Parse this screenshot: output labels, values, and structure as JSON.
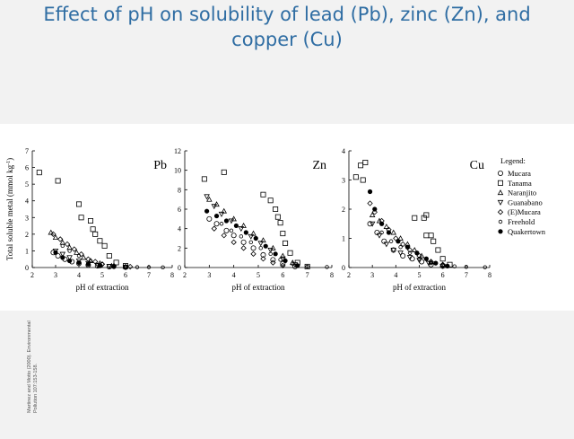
{
  "slide": {
    "title_line1": "Effect of pH on solubility of lead (Pb), zinc (Zn), and",
    "title_line2": "copper (Cu)",
    "citation": "Martinez and Motto (2000). Environmental Pollution 107:153-158."
  },
  "legend": {
    "title": "Legend:",
    "entries": [
      {
        "name": "Mucara",
        "marker": "circle-open"
      },
      {
        "name": "Tanama",
        "marker": "square-open"
      },
      {
        "name": "Naranjito",
        "marker": "triangle-up-open"
      },
      {
        "name": "Guanabano",
        "marker": "triangle-down-open"
      },
      {
        "name": "(E)Mucara",
        "marker": "diamond-open"
      },
      {
        "name": "Freehold",
        "marker": "small-circle-open"
      },
      {
        "name": "Quakertown",
        "marker": "circle-filled"
      }
    ]
  },
  "ylabel": "Total soluble metal (mmol kg",
  "ylabel_sup": "-1",
  "ylabel_end": ")",
  "chart_data": [
    {
      "type": "scatter",
      "title": "Pb",
      "xlabel": "pH of extraction",
      "xlim": [
        2,
        8
      ],
      "ylim": [
        0,
        7
      ],
      "xticks": [
        2,
        3,
        4,
        5,
        6,
        7,
        8
      ],
      "yticks": [
        0,
        1,
        2,
        3,
        4,
        5,
        6,
        7
      ],
      "series": [
        {
          "name": "Mucara",
          "points": [
            [
              2.9,
              0.9
            ],
            [
              3.1,
              0.7
            ],
            [
              3.4,
              0.5
            ],
            [
              3.7,
              0.35
            ],
            [
              4.0,
              0.25
            ],
            [
              4.4,
              0.15
            ],
            [
              4.8,
              0.1
            ],
            [
              5.3,
              0.05
            ],
            [
              6.0,
              0.02
            ]
          ]
        },
        {
          "name": "Tanama",
          "points": [
            [
              2.3,
              5.7
            ],
            [
              3.1,
              5.2
            ],
            [
              4.0,
              3.8
            ],
            [
              4.1,
              3.0
            ],
            [
              4.5,
              2.8
            ],
            [
              4.6,
              2.3
            ],
            [
              4.7,
              2.0
            ],
            [
              4.9,
              1.6
            ],
            [
              5.1,
              1.3
            ],
            [
              5.3,
              0.7
            ],
            [
              5.6,
              0.3
            ],
            [
              6.0,
              0.1
            ]
          ]
        },
        {
          "name": "Naranjito",
          "points": [
            [
              2.8,
              2.1
            ],
            [
              3.0,
              1.8
            ],
            [
              3.3,
              1.5
            ],
            [
              3.6,
              1.2
            ],
            [
              3.9,
              0.9
            ],
            [
              4.2,
              0.6
            ],
            [
              4.5,
              0.4
            ],
            [
              4.9,
              0.25
            ],
            [
              5.4,
              0.1
            ],
            [
              6.0,
              0.05
            ]
          ]
        },
        {
          "name": "Guanabano",
          "points": [
            [
              3.0,
              1.0
            ],
            [
              3.3,
              0.8
            ],
            [
              3.6,
              0.6
            ],
            [
              4.0,
              0.4
            ],
            [
              4.4,
              0.25
            ],
            [
              4.8,
              0.15
            ],
            [
              5.3,
              0.08
            ],
            [
              6.0,
              0.03
            ]
          ]
        },
        {
          "name": "(E)Mucara",
          "points": [
            [
              2.9,
              2.0
            ],
            [
              3.2,
              1.7
            ],
            [
              3.5,
              1.4
            ],
            [
              3.8,
              1.1
            ],
            [
              4.1,
              0.8
            ],
            [
              4.4,
              0.5
            ],
            [
              4.7,
              0.35
            ],
            [
              5.0,
              0.2
            ],
            [
              5.5,
              0.1
            ],
            [
              6.2,
              0.05
            ]
          ]
        },
        {
          "name": "Freehold",
          "points": [
            [
              3.3,
              1.3
            ],
            [
              3.6,
              1.0
            ],
            [
              4.0,
              0.7
            ],
            [
              4.5,
              0.4
            ],
            [
              5.0,
              0.2
            ],
            [
              5.5,
              0.1
            ],
            [
              6.0,
              0.05
            ],
            [
              6.5,
              0.02
            ],
            [
              7.0,
              0.02
            ],
            [
              7.6,
              0.01
            ]
          ]
        },
        {
          "name": "Quakertown",
          "points": [
            [
              3.0,
              0.9
            ],
            [
              3.3,
              0.6
            ],
            [
              3.6,
              0.4
            ],
            [
              4.0,
              0.3
            ],
            [
              4.4,
              0.2
            ],
            [
              4.9,
              0.1
            ],
            [
              5.5,
              0.05
            ]
          ]
        }
      ]
    },
    {
      "type": "scatter",
      "title": "Zn",
      "xlabel": "pH of extraction",
      "xlim": [
        2,
        8
      ],
      "ylim": [
        0,
        12
      ],
      "xticks": [
        2,
        3,
        4,
        5,
        6,
        7,
        8
      ],
      "yticks": [
        0,
        2,
        4,
        6,
        8,
        10,
        12
      ],
      "series": [
        {
          "name": "Mucara",
          "points": [
            [
              3.0,
              5.0
            ],
            [
              3.3,
              4.5
            ],
            [
              3.7,
              3.8
            ],
            [
              4.0,
              3.3
            ],
            [
              4.4,
              2.6
            ],
            [
              4.8,
              2.0
            ],
            [
              5.2,
              1.3
            ],
            [
              5.6,
              0.8
            ],
            [
              6.0,
              0.4
            ],
            [
              6.5,
              0.1
            ]
          ]
        },
        {
          "name": "Tanama",
          "points": [
            [
              2.8,
              9.1
            ],
            [
              3.6,
              9.8
            ],
            [
              5.2,
              7.5
            ],
            [
              5.5,
              6.9
            ],
            [
              5.7,
              6.0
            ],
            [
              5.8,
              5.2
            ],
            [
              5.9,
              4.6
            ],
            [
              6.0,
              3.5
            ],
            [
              6.1,
              2.5
            ],
            [
              6.3,
              1.5
            ],
            [
              6.6,
              0.5
            ],
            [
              7.0,
              0.1
            ]
          ]
        },
        {
          "name": "Naranjito",
          "points": [
            [
              3.0,
              7.0
            ],
            [
              3.3,
              6.5
            ],
            [
              3.6,
              5.8
            ],
            [
              4.0,
              5.0
            ],
            [
              4.4,
              4.3
            ],
            [
              4.8,
              3.5
            ],
            [
              5.2,
              2.8
            ],
            [
              5.6,
              2.0
            ],
            [
              6.0,
              1.2
            ],
            [
              6.4,
              0.5
            ]
          ]
        },
        {
          "name": "Guanabano",
          "points": [
            [
              2.9,
              7.3
            ],
            [
              3.2,
              6.3
            ],
            [
              3.5,
              5.5
            ],
            [
              3.9,
              4.8
            ],
            [
              4.3,
              4.0
            ],
            [
              4.7,
              3.2
            ],
            [
              5.1,
              2.5
            ],
            [
              5.5,
              1.8
            ],
            [
              6.0,
              0.9
            ],
            [
              6.5,
              0.3
            ]
          ]
        },
        {
          "name": "(E)Mucara",
          "points": [
            [
              3.2,
              4.0
            ],
            [
              3.6,
              3.3
            ],
            [
              4.0,
              2.6
            ],
            [
              4.4,
              2.0
            ],
            [
              4.8,
              1.4
            ],
            [
              5.2,
              0.9
            ],
            [
              5.6,
              0.5
            ],
            [
              6.0,
              0.2
            ]
          ]
        },
        {
          "name": "Freehold",
          "points": [
            [
              3.5,
              4.5
            ],
            [
              3.9,
              3.8
            ],
            [
              4.3,
              3.2
            ],
            [
              4.7,
              2.6
            ],
            [
              5.1,
              2.0
            ],
            [
              5.5,
              1.4
            ],
            [
              5.9,
              0.8
            ],
            [
              6.4,
              0.4
            ],
            [
              7.0,
              0.1
            ],
            [
              7.8,
              0.05
            ]
          ]
        },
        {
          "name": "Quakertown",
          "points": [
            [
              2.9,
              5.8
            ],
            [
              3.3,
              5.3
            ],
            [
              3.7,
              4.8
            ],
            [
              4.1,
              4.3
            ],
            [
              4.5,
              3.6
            ],
            [
              4.9,
              3.0
            ],
            [
              5.3,
              2.2
            ],
            [
              5.7,
              1.4
            ],
            [
              6.1,
              0.7
            ],
            [
              6.6,
              0.2
            ]
          ]
        }
      ]
    },
    {
      "type": "scatter",
      "title": "Cu",
      "xlabel": "pH of extraction",
      "xlim": [
        2,
        8
      ],
      "ylim": [
        0,
        4
      ],
      "xticks": [
        2,
        3,
        4,
        5,
        6,
        7,
        8
      ],
      "yticks": [
        0,
        1,
        2,
        3,
        4
      ],
      "series": [
        {
          "name": "Mucara",
          "points": [
            [
              2.9,
              1.5
            ],
            [
              3.2,
              1.2
            ],
            [
              3.5,
              0.9
            ],
            [
              3.9,
              0.6
            ],
            [
              4.3,
              0.4
            ],
            [
              4.7,
              0.3
            ],
            [
              5.1,
              0.2
            ],
            [
              5.5,
              0.1
            ],
            [
              6.0,
              0.05
            ]
          ]
        },
        {
          "name": "Tanama",
          "points": [
            [
              2.5,
              3.5
            ],
            [
              2.7,
              3.6
            ],
            [
              2.6,
              3.0
            ],
            [
              2.3,
              3.1
            ],
            [
              4.8,
              1.7
            ],
            [
              5.2,
              1.7
            ],
            [
              5.3,
              1.8
            ],
            [
              5.3,
              1.1
            ],
            [
              5.5,
              1.1
            ],
            [
              5.6,
              0.9
            ],
            [
              5.8,
              0.6
            ],
            [
              6.0,
              0.3
            ],
            [
              6.3,
              0.1
            ]
          ]
        },
        {
          "name": "Naranjito",
          "points": [
            [
              3.0,
              1.8
            ],
            [
              3.3,
              1.6
            ],
            [
              3.6,
              1.4
            ],
            [
              3.9,
              1.2
            ],
            [
              4.2,
              1.0
            ],
            [
              4.5,
              0.8
            ],
            [
              4.8,
              0.6
            ],
            [
              5.1,
              0.4
            ],
            [
              5.5,
              0.2
            ],
            [
              6.0,
              0.1
            ]
          ]
        },
        {
          "name": "Guanabano",
          "points": [
            [
              3.0,
              1.5
            ],
            [
              3.3,
              1.1
            ],
            [
              3.6,
              0.8
            ],
            [
              3.9,
              0.6
            ],
            [
              4.2,
              0.5
            ],
            [
              4.6,
              0.35
            ],
            [
              5.0,
              0.25
            ],
            [
              5.4,
              0.15
            ],
            [
              6.0,
              0.05
            ]
          ]
        },
        {
          "name": "(E)Mucara",
          "points": [
            [
              2.9,
              2.2
            ],
            [
              3.1,
              1.9
            ],
            [
              3.4,
              1.6
            ],
            [
              3.7,
              1.3
            ],
            [
              4.0,
              1.0
            ],
            [
              4.3,
              0.8
            ],
            [
              4.6,
              0.6
            ],
            [
              5.0,
              0.4
            ],
            [
              5.5,
              0.2
            ],
            [
              6.0,
              0.1
            ]
          ]
        },
        {
          "name": "Freehold",
          "points": [
            [
              3.4,
              1.2
            ],
            [
              3.8,
              0.9
            ],
            [
              4.2,
              0.7
            ],
            [
              4.6,
              0.5
            ],
            [
              5.0,
              0.3
            ],
            [
              5.5,
              0.15
            ],
            [
              6.0,
              0.08
            ],
            [
              6.5,
              0.04
            ],
            [
              7.0,
              0.02
            ],
            [
              7.8,
              0.01
            ]
          ]
        },
        {
          "name": "Quakertown",
          "points": [
            [
              2.9,
              2.6
            ],
            [
              3.1,
              2.0
            ],
            [
              3.4,
              1.5
            ],
            [
              3.7,
              1.2
            ],
            [
              4.1,
              0.9
            ],
            [
              4.5,
              0.7
            ],
            [
              4.9,
              0.5
            ],
            [
              5.3,
              0.3
            ],
            [
              5.7,
              0.15
            ],
            [
              6.2,
              0.05
            ]
          ]
        }
      ]
    }
  ]
}
